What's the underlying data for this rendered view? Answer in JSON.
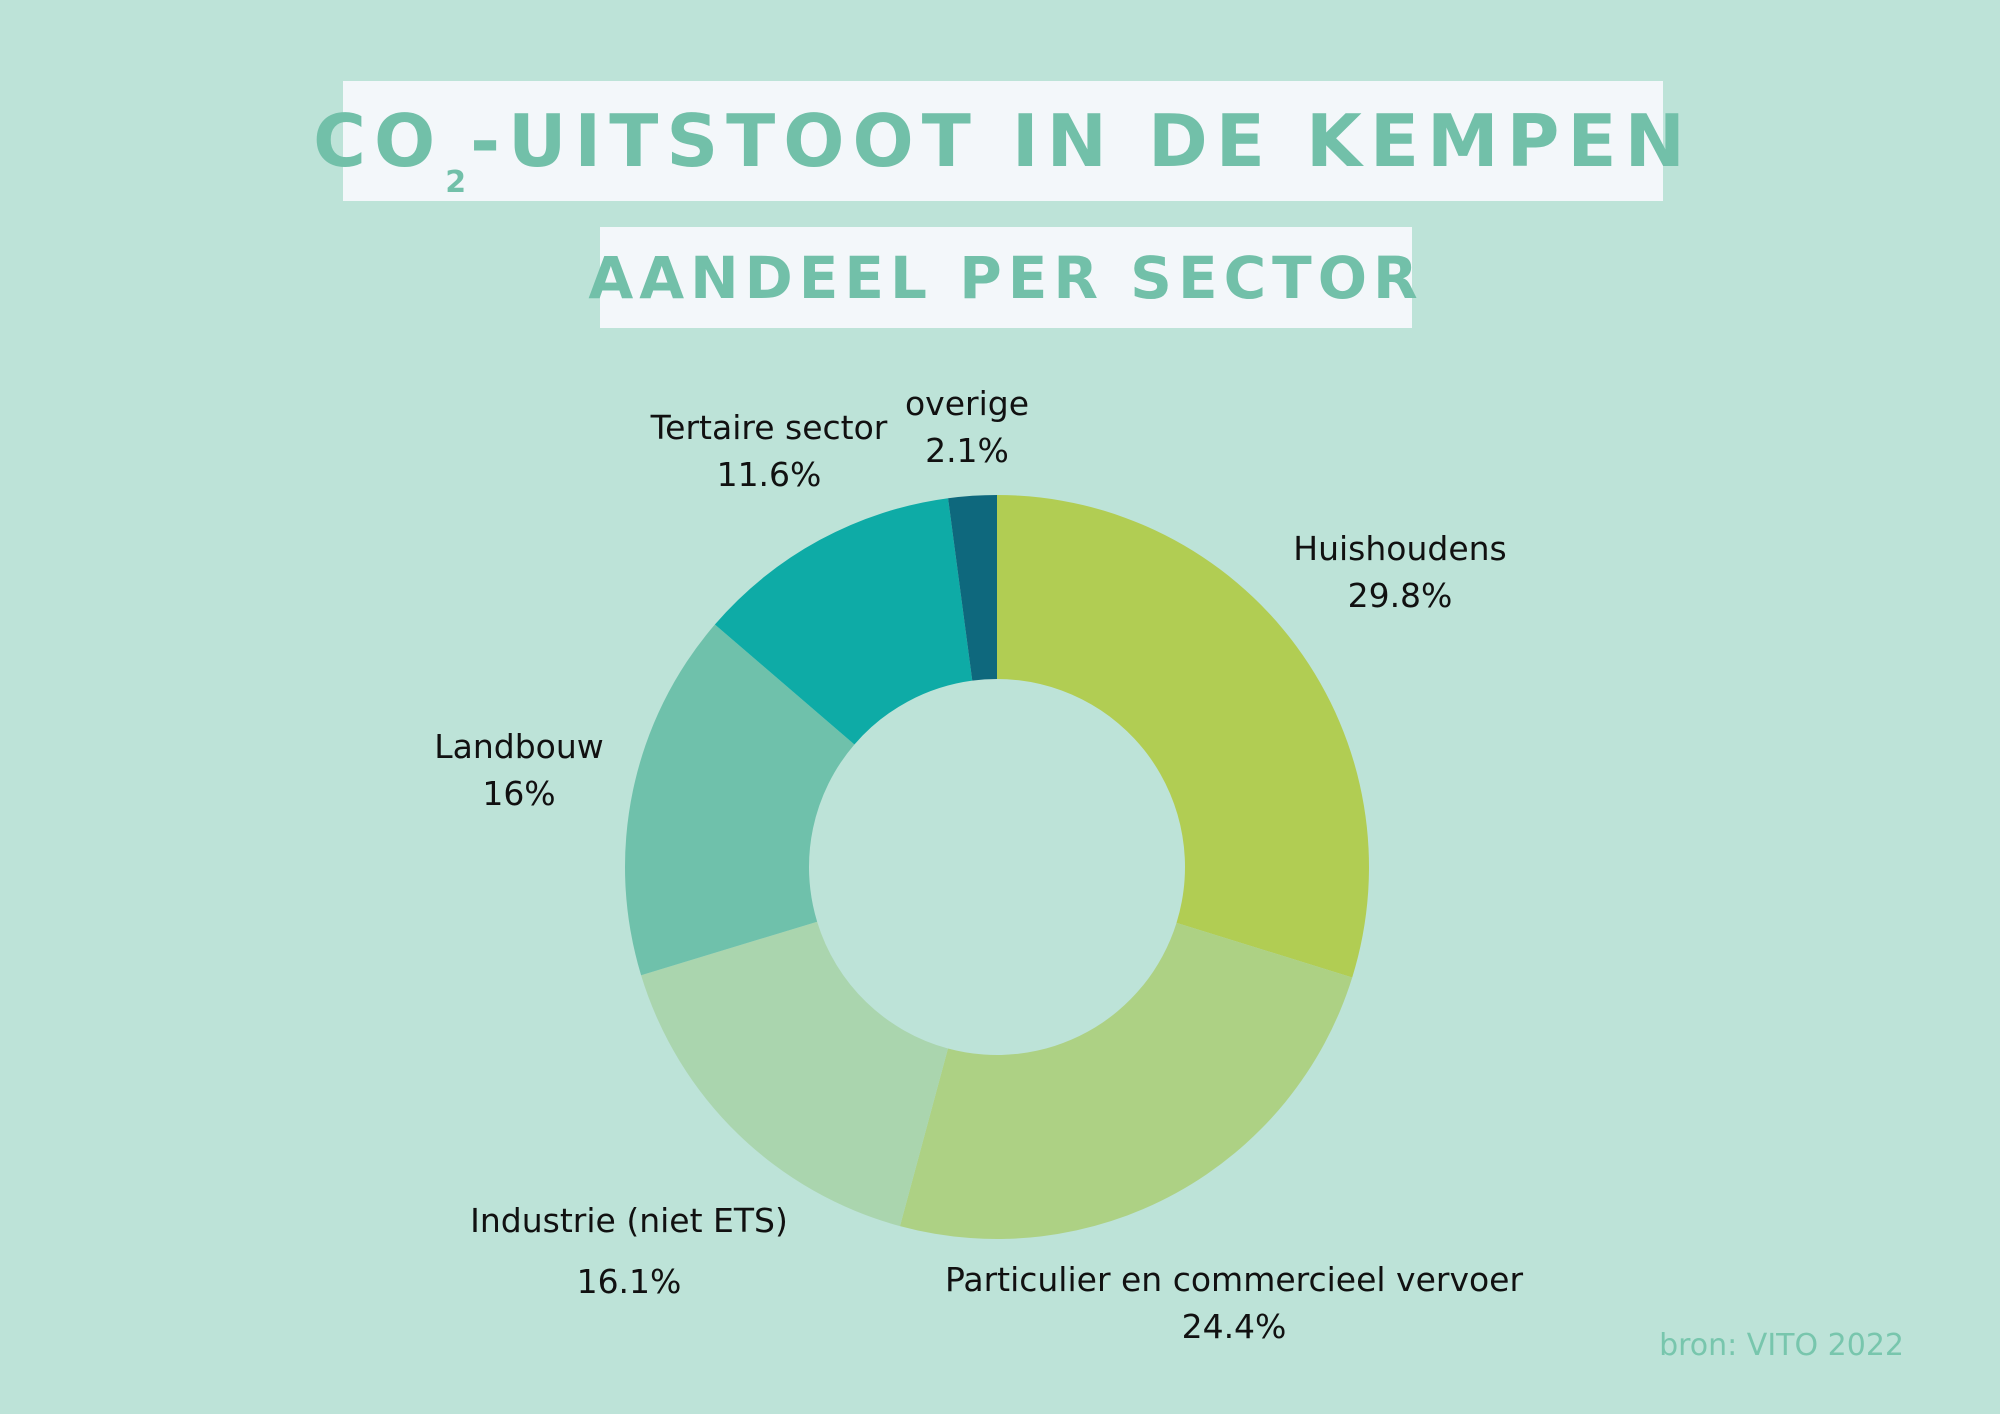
{
  "title": {
    "prefix": "CO",
    "subscript": "2",
    "rest": "-UITSTOOT IN DE KEMPEN"
  },
  "subtitle": "AANDEEL PER SECTOR",
  "source": "bron: VITO 2022",
  "chart_data": {
    "type": "pie",
    "style": "donut",
    "title": "CO2-UITSTOOT IN DE KEMPEN",
    "subtitle": "AANDEEL PER SECTOR",
    "slices": [
      {
        "label": "Huishoudens",
        "value": 29.8,
        "value_label": "29.8%",
        "color": "#b1cd53"
      },
      {
        "label": "Particulier en commercieel vervoer",
        "value": 24.4,
        "value_label": "24.4%",
        "color": "#add184"
      },
      {
        "label": "Industrie (niet ETS)",
        "value": 16.1,
        "value_label": "16.1%",
        "color": "#aad5ae"
      },
      {
        "label": "Landbouw",
        "value": 16,
        "value_label": "16%",
        "color": "#6fc1ab"
      },
      {
        "label": "Tertaire sector",
        "value": 11.6,
        "value_label": "11.6%",
        "color": "#0eaba6"
      },
      {
        "label": "overige",
        "value": 2.1,
        "value_label": "2.1%",
        "color": "#0e687d"
      }
    ]
  }
}
